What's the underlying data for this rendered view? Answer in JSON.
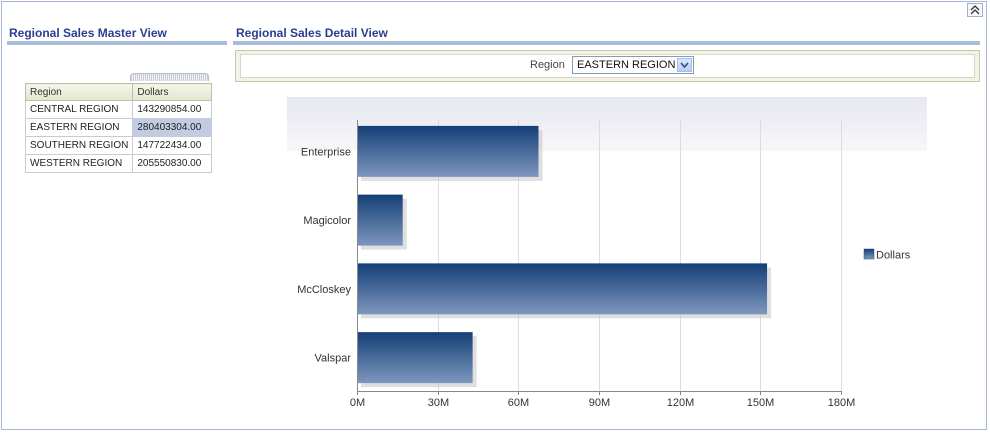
{
  "master": {
    "title": "Regional Sales Master View",
    "columns": [
      "Region",
      "Dollars"
    ],
    "rows": [
      {
        "region": "CENTRAL REGION",
        "dollars": "143290854.00",
        "selected": false
      },
      {
        "region": "EASTERN REGION",
        "dollars": "280403304.00",
        "selected": true
      },
      {
        "region": "SOUTHERN REGION",
        "dollars": "147722434.00",
        "selected": false
      },
      {
        "region": "WESTERN REGION",
        "dollars": "205550830.00",
        "selected": false
      }
    ]
  },
  "detail": {
    "title": "Regional Sales Detail View",
    "region_label": "Region",
    "region_value": "EASTERN REGION"
  },
  "colors": {
    "title": "#2b3d91",
    "bar_top": "#143f77",
    "bar_bottom": "#7e97be"
  },
  "chart_data": {
    "type": "bar",
    "orientation": "horizontal",
    "categories": [
      "Enterprise",
      "Magicolor",
      "McCloskey",
      "Valspar"
    ],
    "series": [
      {
        "name": "Dollars",
        "values": [
          67500000,
          17000000,
          152500000,
          43000000
        ]
      }
    ],
    "xlim": [
      0,
      180000000
    ],
    "x_ticks": [
      0,
      30000000,
      60000000,
      90000000,
      120000000,
      150000000,
      180000000
    ],
    "x_tick_labels": [
      "0M",
      "30M",
      "60M",
      "90M",
      "120M",
      "150M",
      "180M"
    ],
    "legend": "right",
    "grid": true
  }
}
